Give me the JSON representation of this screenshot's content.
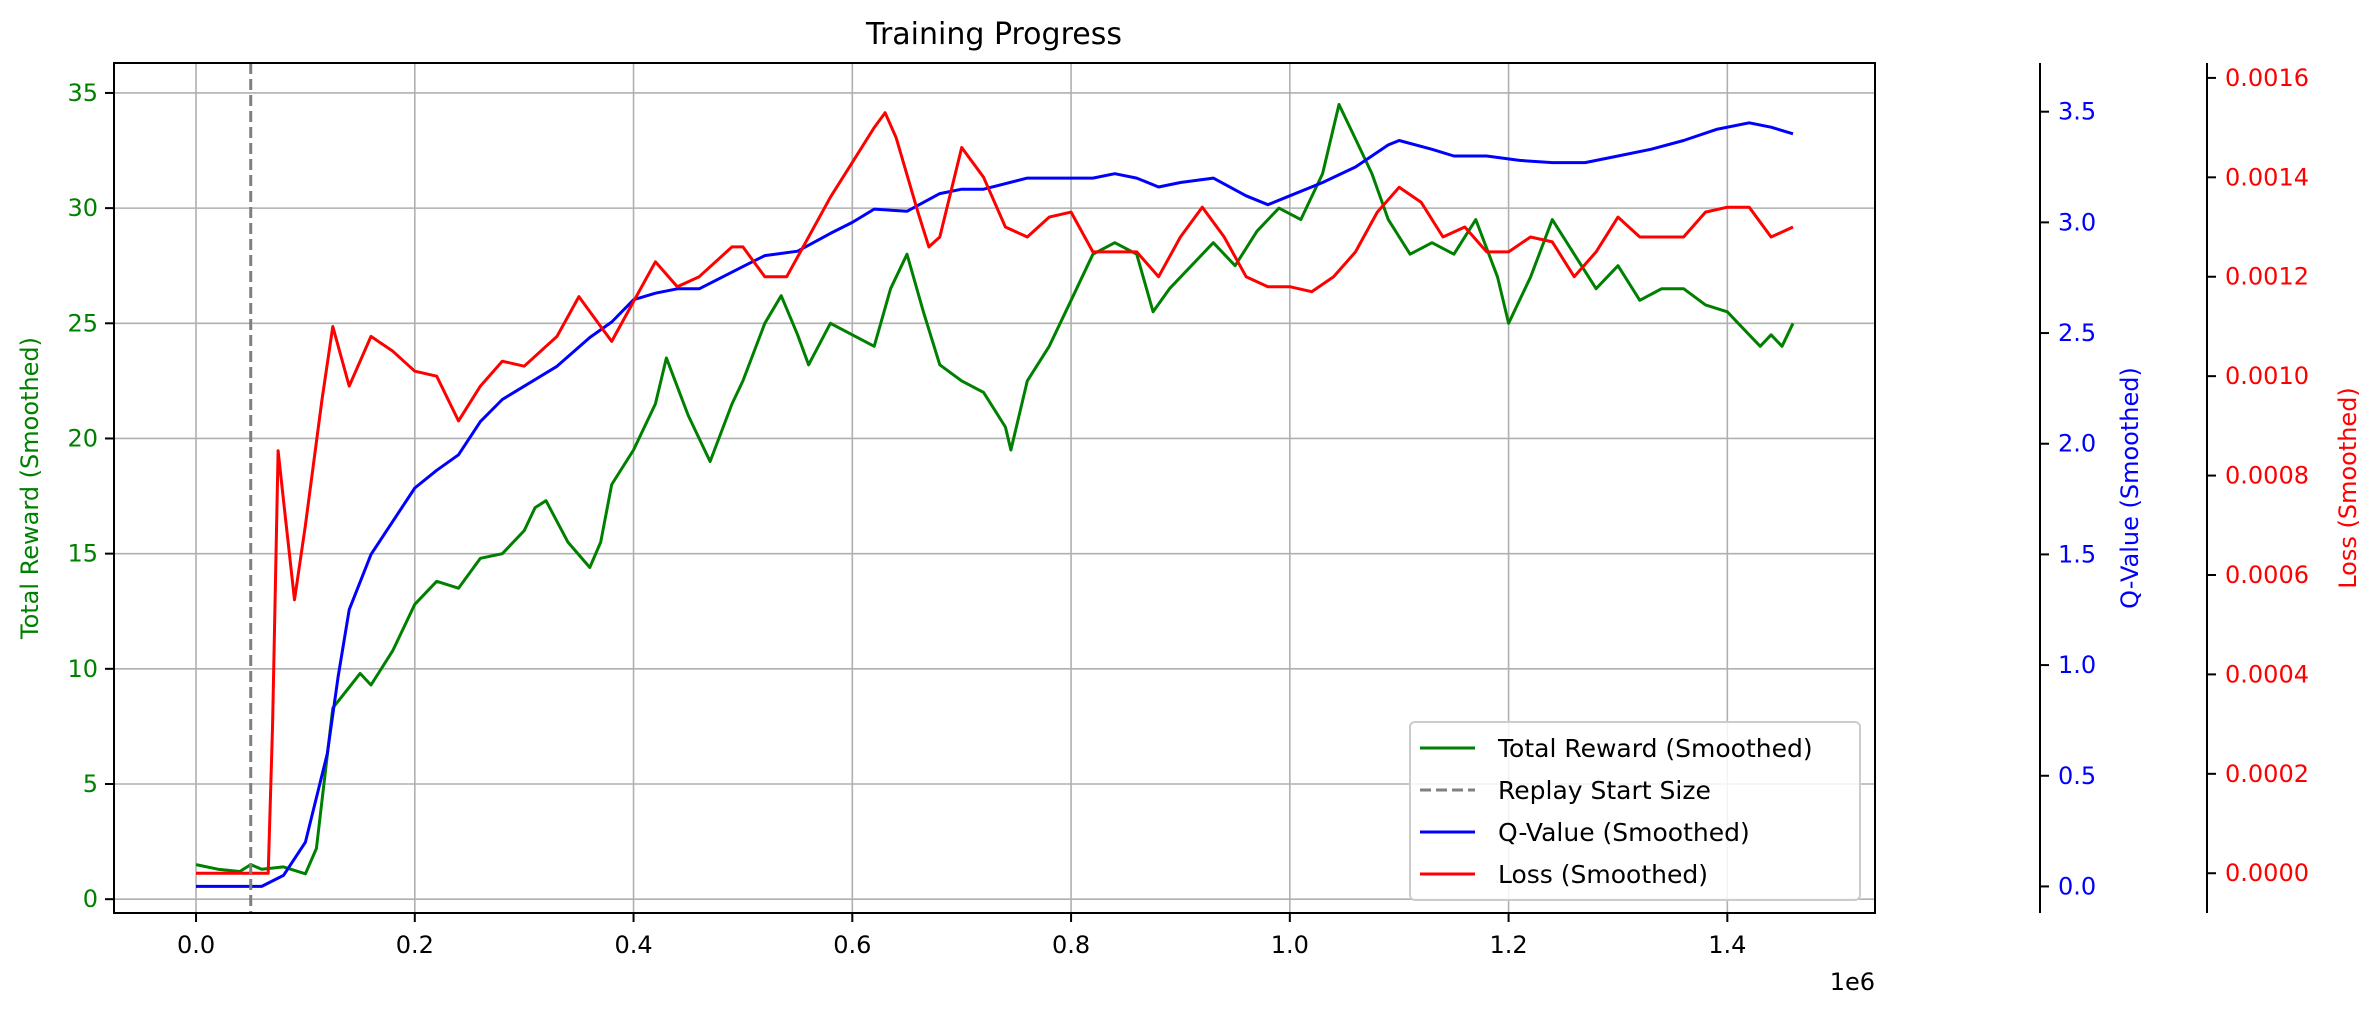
{
  "chart_data": {
    "type": "line",
    "title": "Training Progress",
    "x_multiplier_label": "1e6",
    "xlim": [
      -0.075,
      1.535
    ],
    "x_ticks": [
      0.0,
      0.2,
      0.4,
      0.6,
      0.8,
      1.0,
      1.2,
      1.4
    ],
    "x_tick_labels": [
      "0.0",
      "0.2",
      "0.4",
      "0.6",
      "0.8",
      "1.0",
      "1.2",
      "1.4"
    ],
    "grid": true,
    "legend_position": "lower right",
    "axes": {
      "reward": {
        "label": "Total Reward (Smoothed)",
        "color": "#008000",
        "ylim": [
          -0.6,
          36.3
        ],
        "ticks": [
          0,
          5,
          10,
          15,
          20,
          25,
          30,
          35
        ],
        "tick_labels": [
          "0",
          "5",
          "10",
          "15",
          "20",
          "25",
          "30",
          "35"
        ]
      },
      "q_value": {
        "label": "Q-Value (Smoothed)",
        "color": "#0000ff",
        "ylim": [
          -0.12,
          3.72
        ],
        "ticks": [
          0.0,
          0.5,
          1.0,
          1.5,
          2.0,
          2.5,
          3.0,
          3.5
        ],
        "tick_labels": [
          "0.0",
          "0.5",
          "1.0",
          "1.5",
          "2.0",
          "2.5",
          "3.0",
          "3.5"
        ]
      },
      "loss": {
        "label": "Loss (Smoothed)",
        "color": "#ff0000",
        "ylim": [
          -8e-05,
          0.00163
        ],
        "ticks": [
          0,
          0.0002,
          0.0004,
          0.0006,
          0.0008,
          0.001,
          0.0012,
          0.0014,
          0.0016
        ],
        "tick_labels": [
          "0.0000",
          "0.0002",
          "0.0004",
          "0.0006",
          "0.0008",
          "0.0010",
          "0.0012",
          "0.0014",
          "0.0016"
        ]
      }
    },
    "replay_start": {
      "name": "Replay Start Size",
      "x": 0.05,
      "color": "#808080"
    },
    "series": [
      {
        "name": "Total Reward (Smoothed)",
        "axis": "reward",
        "color": "#008000",
        "points": [
          [
            0.0,
            1.5
          ],
          [
            0.02,
            1.3
          ],
          [
            0.04,
            1.2
          ],
          [
            0.05,
            1.5
          ],
          [
            0.06,
            1.3
          ],
          [
            0.08,
            1.4
          ],
          [
            0.1,
            1.1
          ],
          [
            0.11,
            2.2
          ],
          [
            0.125,
            8.3
          ],
          [
            0.14,
            9.2
          ],
          [
            0.15,
            9.8
          ],
          [
            0.16,
            9.3
          ],
          [
            0.18,
            10.8
          ],
          [
            0.2,
            12.8
          ],
          [
            0.22,
            13.8
          ],
          [
            0.24,
            13.5
          ],
          [
            0.26,
            14.8
          ],
          [
            0.28,
            15.0
          ],
          [
            0.3,
            16.0
          ],
          [
            0.31,
            17.0
          ],
          [
            0.32,
            17.3
          ],
          [
            0.34,
            15.5
          ],
          [
            0.36,
            14.4
          ],
          [
            0.37,
            15.5
          ],
          [
            0.38,
            18.0
          ],
          [
            0.4,
            19.5
          ],
          [
            0.42,
            21.5
          ],
          [
            0.43,
            23.5
          ],
          [
            0.45,
            21.0
          ],
          [
            0.47,
            19.0
          ],
          [
            0.49,
            21.5
          ],
          [
            0.5,
            22.5
          ],
          [
            0.52,
            25.0
          ],
          [
            0.535,
            26.2
          ],
          [
            0.55,
            24.5
          ],
          [
            0.56,
            23.2
          ],
          [
            0.58,
            25.0
          ],
          [
            0.6,
            24.5
          ],
          [
            0.62,
            24.0
          ],
          [
            0.635,
            26.5
          ],
          [
            0.65,
            28.0
          ],
          [
            0.665,
            25.5
          ],
          [
            0.68,
            23.2
          ],
          [
            0.7,
            22.5
          ],
          [
            0.72,
            22.0
          ],
          [
            0.74,
            20.5
          ],
          [
            0.745,
            19.5
          ],
          [
            0.76,
            22.5
          ],
          [
            0.78,
            24.0
          ],
          [
            0.8,
            26.0
          ],
          [
            0.82,
            28.0
          ],
          [
            0.84,
            28.5
          ],
          [
            0.86,
            28.0
          ],
          [
            0.875,
            25.5
          ],
          [
            0.89,
            26.5
          ],
          [
            0.91,
            27.5
          ],
          [
            0.93,
            28.5
          ],
          [
            0.95,
            27.5
          ],
          [
            0.97,
            29.0
          ],
          [
            0.99,
            30.0
          ],
          [
            1.01,
            29.5
          ],
          [
            1.03,
            31.5
          ],
          [
            1.045,
            34.5
          ],
          [
            1.06,
            33.0
          ],
          [
            1.075,
            31.5
          ],
          [
            1.09,
            29.5
          ],
          [
            1.11,
            28.0
          ],
          [
            1.13,
            28.5
          ],
          [
            1.15,
            28.0
          ],
          [
            1.17,
            29.5
          ],
          [
            1.19,
            27.0
          ],
          [
            1.2,
            25.0
          ],
          [
            1.22,
            27.0
          ],
          [
            1.24,
            29.5
          ],
          [
            1.26,
            28.0
          ],
          [
            1.28,
            26.5
          ],
          [
            1.3,
            27.5
          ],
          [
            1.32,
            26.0
          ],
          [
            1.34,
            26.5
          ],
          [
            1.36,
            26.5
          ],
          [
            1.38,
            25.8
          ],
          [
            1.4,
            25.5
          ],
          [
            1.42,
            24.5
          ],
          [
            1.43,
            24.0
          ],
          [
            1.44,
            24.5
          ],
          [
            1.45,
            24.0
          ],
          [
            1.46,
            25.0
          ]
        ]
      },
      {
        "name": "Q-Value (Smoothed)",
        "axis": "q_value",
        "color": "#0000ff",
        "points": [
          [
            0.0,
            0.0
          ],
          [
            0.06,
            0.0
          ],
          [
            0.08,
            0.05
          ],
          [
            0.1,
            0.2
          ],
          [
            0.12,
            0.6
          ],
          [
            0.13,
            0.95
          ],
          [
            0.14,
            1.25
          ],
          [
            0.16,
            1.5
          ],
          [
            0.18,
            1.65
          ],
          [
            0.2,
            1.8
          ],
          [
            0.22,
            1.88
          ],
          [
            0.24,
            1.95
          ],
          [
            0.26,
            2.1
          ],
          [
            0.28,
            2.2
          ],
          [
            0.3,
            2.26
          ],
          [
            0.33,
            2.35
          ],
          [
            0.36,
            2.48
          ],
          [
            0.38,
            2.55
          ],
          [
            0.4,
            2.65
          ],
          [
            0.42,
            2.68
          ],
          [
            0.44,
            2.7
          ],
          [
            0.46,
            2.7
          ],
          [
            0.48,
            2.75
          ],
          [
            0.5,
            2.8
          ],
          [
            0.52,
            2.85
          ],
          [
            0.55,
            2.87
          ],
          [
            0.58,
            2.95
          ],
          [
            0.6,
            3.0
          ],
          [
            0.62,
            3.06
          ],
          [
            0.65,
            3.05
          ],
          [
            0.68,
            3.13
          ],
          [
            0.7,
            3.15
          ],
          [
            0.72,
            3.15
          ],
          [
            0.76,
            3.2
          ],
          [
            0.8,
            3.2
          ],
          [
            0.82,
            3.2
          ],
          [
            0.84,
            3.22
          ],
          [
            0.86,
            3.2
          ],
          [
            0.88,
            3.16
          ],
          [
            0.9,
            3.18
          ],
          [
            0.93,
            3.2
          ],
          [
            0.96,
            3.12
          ],
          [
            0.98,
            3.08
          ],
          [
            1.0,
            3.12
          ],
          [
            1.03,
            3.18
          ],
          [
            1.06,
            3.25
          ],
          [
            1.09,
            3.35
          ],
          [
            1.1,
            3.37
          ],
          [
            1.13,
            3.33
          ],
          [
            1.15,
            3.3
          ],
          [
            1.18,
            3.3
          ],
          [
            1.21,
            3.28
          ],
          [
            1.24,
            3.27
          ],
          [
            1.27,
            3.27
          ],
          [
            1.3,
            3.3
          ],
          [
            1.33,
            3.33
          ],
          [
            1.36,
            3.37
          ],
          [
            1.39,
            3.42
          ],
          [
            1.42,
            3.45
          ],
          [
            1.44,
            3.43
          ],
          [
            1.46,
            3.4
          ]
        ]
      },
      {
        "name": "Loss (Smoothed)",
        "axis": "loss",
        "color": "#ff0000",
        "points": [
          [
            0.0,
            0.0
          ],
          [
            0.066,
            0.0
          ],
          [
            0.07,
            0.0003
          ],
          [
            0.075,
            0.00085
          ],
          [
            0.08,
            0.00075
          ],
          [
            0.09,
            0.00055
          ],
          [
            0.1,
            0.0007
          ],
          [
            0.115,
            0.00095
          ],
          [
            0.125,
            0.0011
          ],
          [
            0.14,
            0.00098
          ],
          [
            0.16,
            0.00108
          ],
          [
            0.18,
            0.00105
          ],
          [
            0.2,
            0.00101
          ],
          [
            0.22,
            0.001
          ],
          [
            0.24,
            0.00091
          ],
          [
            0.26,
            0.00098
          ],
          [
            0.28,
            0.00103
          ],
          [
            0.3,
            0.00102
          ],
          [
            0.33,
            0.00108
          ],
          [
            0.35,
            0.00116
          ],
          [
            0.37,
            0.0011
          ],
          [
            0.38,
            0.00107
          ],
          [
            0.4,
            0.00115
          ],
          [
            0.42,
            0.00123
          ],
          [
            0.44,
            0.00118
          ],
          [
            0.46,
            0.0012
          ],
          [
            0.49,
            0.00126
          ],
          [
            0.5,
            0.00126
          ],
          [
            0.52,
            0.0012
          ],
          [
            0.54,
            0.0012
          ],
          [
            0.56,
            0.00128
          ],
          [
            0.58,
            0.00136
          ],
          [
            0.6,
            0.00143
          ],
          [
            0.62,
            0.0015
          ],
          [
            0.63,
            0.00153
          ],
          [
            0.64,
            0.00148
          ],
          [
            0.66,
            0.00133
          ],
          [
            0.67,
            0.00126
          ],
          [
            0.68,
            0.00128
          ],
          [
            0.7,
            0.00146
          ],
          [
            0.72,
            0.0014
          ],
          [
            0.74,
            0.0013
          ],
          [
            0.76,
            0.00128
          ],
          [
            0.78,
            0.00132
          ],
          [
            0.8,
            0.00133
          ],
          [
            0.82,
            0.00125
          ],
          [
            0.84,
            0.00125
          ],
          [
            0.86,
            0.00125
          ],
          [
            0.88,
            0.0012
          ],
          [
            0.9,
            0.00128
          ],
          [
            0.92,
            0.00134
          ],
          [
            0.94,
            0.00128
          ],
          [
            0.96,
            0.0012
          ],
          [
            0.98,
            0.00118
          ],
          [
            1.0,
            0.00118
          ],
          [
            1.02,
            0.00117
          ],
          [
            1.04,
            0.0012
          ],
          [
            1.06,
            0.00125
          ],
          [
            1.08,
            0.00133
          ],
          [
            1.1,
            0.00138
          ],
          [
            1.12,
            0.00135
          ],
          [
            1.14,
            0.00128
          ],
          [
            1.16,
            0.0013
          ],
          [
            1.18,
            0.00125
          ],
          [
            1.2,
            0.00125
          ],
          [
            1.22,
            0.00128
          ],
          [
            1.24,
            0.00127
          ],
          [
            1.26,
            0.0012
          ],
          [
            1.28,
            0.00125
          ],
          [
            1.3,
            0.00132
          ],
          [
            1.32,
            0.00128
          ],
          [
            1.34,
            0.00128
          ],
          [
            1.36,
            0.00128
          ],
          [
            1.38,
            0.00133
          ],
          [
            1.4,
            0.00134
          ],
          [
            1.42,
            0.00134
          ],
          [
            1.44,
            0.00128
          ],
          [
            1.46,
            0.0013
          ]
        ]
      }
    ]
  }
}
